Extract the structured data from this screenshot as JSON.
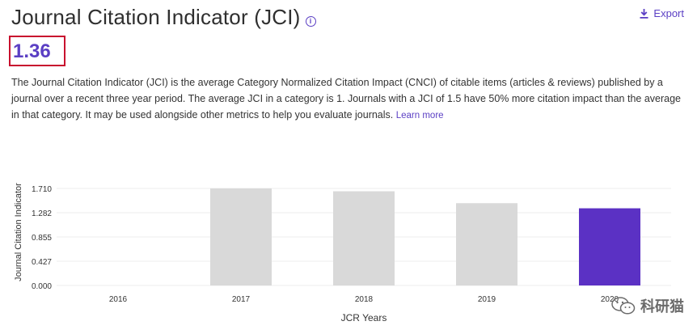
{
  "header": {
    "title": "Journal Citation Indicator (JCI)",
    "info_icon": "info-icon",
    "export_label": "Export",
    "export_icon": "download-icon"
  },
  "value": "1.36",
  "description": {
    "text": "The Journal Citation Indicator (JCI) is the average Category Normalized Citation Impact (CNCI) of citable items (articles & reviews) published by a journal over a recent three year period. The average JCI in a category is 1. Journals with a JCI of 1.5 have 50% more citation impact than the average in that category. It may be used alongside other metrics to help you evaluate journals.",
    "learn_more": "Learn more"
  },
  "watermark": {
    "text": "科研猫"
  },
  "colors": {
    "accent": "#5b3fc4",
    "bar_default": "#d9d9d9",
    "bar_highlight": "#5b31c4",
    "highlight_border": "#c8102e"
  },
  "chart_data": {
    "type": "bar",
    "title": "",
    "xlabel": "JCR Years",
    "ylabel": "Journal Citation Indicator",
    "categories": [
      "2016",
      "2017",
      "2018",
      "2019",
      "2020"
    ],
    "values": [
      null,
      1.71,
      1.66,
      1.45,
      1.36
    ],
    "highlight_index": 4,
    "yticks": [
      "0.000",
      "0.427",
      "0.855",
      "1.282",
      "1.710"
    ],
    "ylim": [
      0,
      1.71
    ],
    "grid": true
  }
}
